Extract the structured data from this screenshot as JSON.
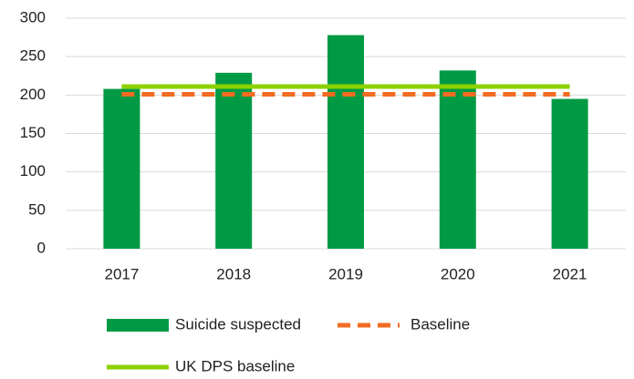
{
  "chart_data": {
    "type": "bar",
    "categories": [
      "2017",
      "2018",
      "2019",
      "2020",
      "2021"
    ],
    "series": [
      {
        "name": "Suicide suspected",
        "type": "bar",
        "color": "#009a44",
        "values": [
          208,
          229,
          278,
          232,
          195
        ]
      },
      {
        "name": "Baseline",
        "type": "line",
        "dash": true,
        "color": "#f26b21",
        "values": [
          201,
          201,
          201,
          201,
          201
        ]
      },
      {
        "name": "UK DPS baseline",
        "type": "line",
        "dash": false,
        "color": "#8cd100",
        "values": [
          211,
          211,
          211,
          211,
          211
        ]
      }
    ],
    "ylim": [
      0,
      300
    ],
    "yticks": [
      0,
      50,
      100,
      150,
      200,
      250,
      300
    ],
    "grid": true
  }
}
